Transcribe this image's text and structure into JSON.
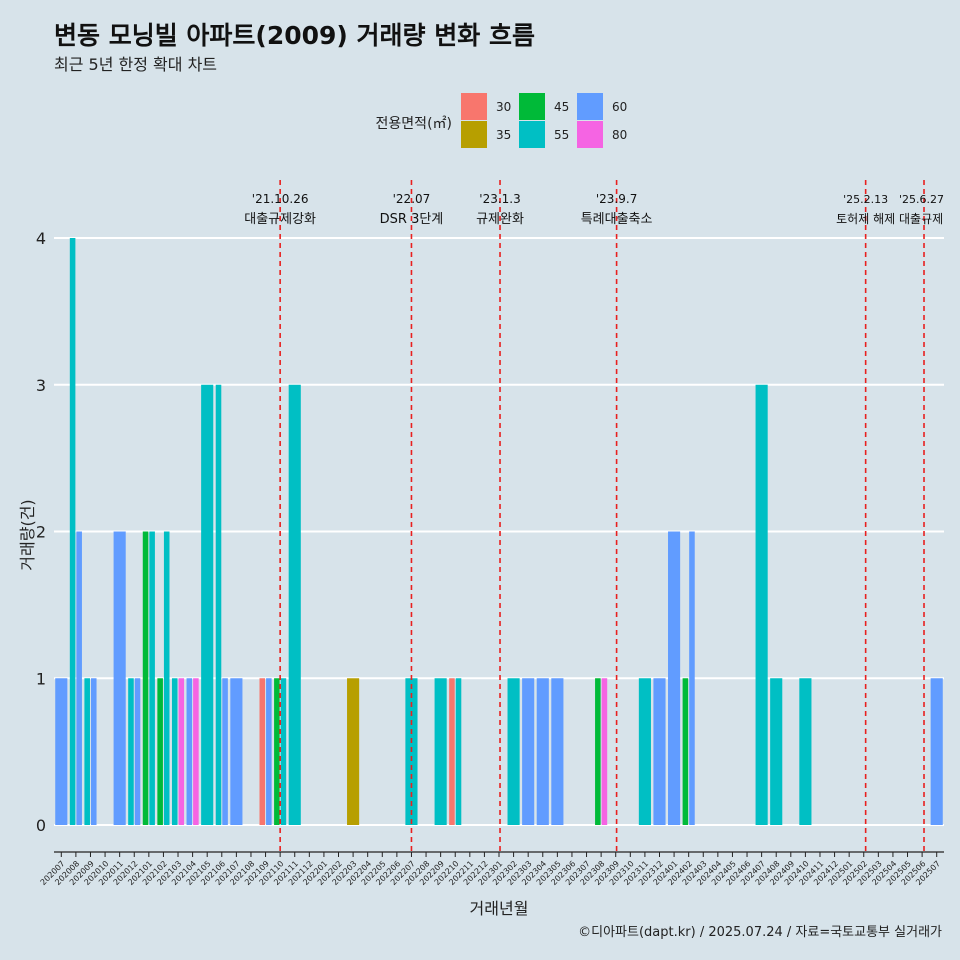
{
  "colors": {
    "background": "#d7e3ea",
    "grid": "#ffffff",
    "event_line": "#e8201f",
    "area_30": "#f8766d",
    "area_35": "#b79f00",
    "area_45": "#00ba38",
    "area_55": "#00bfc4",
    "area_60": "#619cff",
    "area_80": "#f564e3"
  },
  "chart_data": {
    "type": "bar",
    "title": "변동 모닝빌 아파트(2009) 거래량 변화 흐름",
    "subtitle": "최근 5년 한정 확대 차트",
    "xlabel": "거래년월",
    "ylabel": "거래량(건)",
    "ylim": [
      0,
      4
    ],
    "yticks": [
      0,
      1,
      2,
      3,
      4
    ],
    "caption": "©디아파트(dapt.kr) / 2025.07.24 / 자료=국토교통부 실거래가",
    "legend": {
      "title": "전용면적(㎡)",
      "position": "top",
      "entries": [
        {
          "label": "30",
          "key": "area_30"
        },
        {
          "label": "35",
          "key": "area_35"
        },
        {
          "label": "45",
          "key": "area_45"
        },
        {
          "label": "55",
          "key": "area_55"
        },
        {
          "label": "60",
          "key": "area_60"
        },
        {
          "label": "80",
          "key": "area_80"
        }
      ]
    },
    "categories": [
      "202007",
      "202008",
      "202009",
      "202010",
      "202011",
      "202012",
      "202101",
      "202102",
      "202103",
      "202104",
      "202105",
      "202106",
      "202107",
      "202108",
      "202109",
      "202110",
      "202111",
      "202112",
      "202201",
      "202202",
      "202203",
      "202204",
      "202205",
      "202206",
      "202207",
      "202208",
      "202209",
      "202210",
      "202211",
      "202212",
      "202301",
      "202302",
      "202303",
      "202304",
      "202305",
      "202306",
      "202307",
      "202308",
      "202309",
      "202310",
      "202311",
      "202312",
      "202401",
      "202402",
      "202403",
      "202404",
      "202405",
      "202406",
      "202407",
      "202408",
      "202409",
      "202410",
      "202411",
      "202412",
      "202501",
      "202502",
      "202503",
      "202504",
      "202505",
      "202506",
      "202507"
    ],
    "bars": [
      {
        "month": "202007",
        "area": "60",
        "value": 1
      },
      {
        "month": "202008",
        "area": "55",
        "value": 4
      },
      {
        "month": "202008",
        "area": "60",
        "value": 2
      },
      {
        "month": "202009",
        "area": "55",
        "value": 1
      },
      {
        "month": "202009",
        "area": "60",
        "value": 1
      },
      {
        "month": "202011",
        "area": "60",
        "value": 2
      },
      {
        "month": "202012",
        "area": "55",
        "value": 1
      },
      {
        "month": "202012",
        "area": "60",
        "value": 1
      },
      {
        "month": "202101",
        "area": "45",
        "value": 2
      },
      {
        "month": "202101",
        "area": "55",
        "value": 2
      },
      {
        "month": "202102",
        "area": "45",
        "value": 1
      },
      {
        "month": "202102",
        "area": "55",
        "value": 2
      },
      {
        "month": "202103",
        "area": "55",
        "value": 1
      },
      {
        "month": "202103",
        "area": "80",
        "value": 1
      },
      {
        "month": "202104",
        "area": "60",
        "value": 1
      },
      {
        "month": "202104",
        "area": "80",
        "value": 1
      },
      {
        "month": "202105",
        "area": "55",
        "value": 3
      },
      {
        "month": "202106",
        "area": "55",
        "value": 3
      },
      {
        "month": "202106",
        "area": "60",
        "value": 1
      },
      {
        "month": "202107",
        "area": "60",
        "value": 1
      },
      {
        "month": "202109",
        "area": "30",
        "value": 1
      },
      {
        "month": "202109",
        "area": "60",
        "value": 1
      },
      {
        "month": "202110",
        "area": "45",
        "value": 1
      },
      {
        "month": "202110",
        "area": "55",
        "value": 1
      },
      {
        "month": "202111",
        "area": "55",
        "value": 3
      },
      {
        "month": "202203",
        "area": "35",
        "value": 1
      },
      {
        "month": "202207",
        "area": "55",
        "value": 1
      },
      {
        "month": "202209",
        "area": "55",
        "value": 1
      },
      {
        "month": "202210",
        "area": "30",
        "value": 1
      },
      {
        "month": "202210",
        "area": "55",
        "value": 1
      },
      {
        "month": "202302",
        "area": "55",
        "value": 1
      },
      {
        "month": "202303",
        "area": "60",
        "value": 1
      },
      {
        "month": "202304",
        "area": "60",
        "value": 1
      },
      {
        "month": "202305",
        "area": "60",
        "value": 1
      },
      {
        "month": "202308",
        "area": "45",
        "value": 1
      },
      {
        "month": "202308",
        "area": "80",
        "value": 1
      },
      {
        "month": "202311",
        "area": "55",
        "value": 1
      },
      {
        "month": "202312",
        "area": "60",
        "value": 1
      },
      {
        "month": "202401",
        "area": "60",
        "value": 2
      },
      {
        "month": "202402",
        "area": "45",
        "value": 1
      },
      {
        "month": "202402",
        "area": "60",
        "value": 2
      },
      {
        "month": "202407",
        "area": "55",
        "value": 3
      },
      {
        "month": "202408",
        "area": "55",
        "value": 1
      },
      {
        "month": "202410",
        "area": "55",
        "value": 1
      },
      {
        "month": "202507",
        "area": "60",
        "value": 1
      }
    ],
    "events": [
      {
        "date": "'21.10.26",
        "label": "대출규제강화",
        "x": 15.0
      },
      {
        "date": "'22.07",
        "label": "DSR 3단계",
        "x": 24.0
      },
      {
        "date": "'23.1.3",
        "label": "규제완화",
        "x": 30.07
      },
      {
        "date": "'23.9.7",
        "label": "특례대출축소",
        "x": 38.06
      },
      {
        "date": "'25.2.13",
        "label": "토허제 해제",
        "x": 55.13
      },
      {
        "date": "'25.6.27",
        "label": "대출규제",
        "x": 59.13
      }
    ]
  }
}
